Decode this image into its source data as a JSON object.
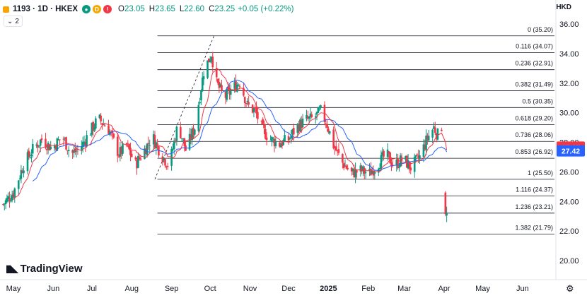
{
  "header": {
    "symbol": "1193 · 1D · HKEX",
    "badges": [
      "D",
      "!"
    ],
    "open_label": "O",
    "open": "23.05",
    "high_label": "H",
    "high": "23.65",
    "low_label": "L",
    "low": "22.60",
    "close_label": "C",
    "close": "23.25",
    "change": "+0.05 (+0.22%)"
  },
  "indicator_toggle": "2",
  "currency": "HKD",
  "brand": "TradingView",
  "colors": {
    "up": "#089981",
    "down": "#f23645",
    "ma_fast": "#f23645",
    "ma_slow": "#2962ff",
    "fib": "#131722"
  },
  "chart_data": {
    "type": "candlestick",
    "ylim": [
      20,
      36
    ],
    "y_ticks": [
      "36.00",
      "34.00",
      "32.00",
      "30.00",
      "28.00",
      "26.00",
      "24.00",
      "22.00",
      "20.00"
    ],
    "x_ticks": [
      {
        "label": "May",
        "day": 0
      },
      {
        "label": "Jun",
        "day": 31
      },
      {
        "label": "Jul",
        "day": 61
      },
      {
        "label": "Aug",
        "day": 92
      },
      {
        "label": "Sep",
        "day": 123
      },
      {
        "label": "Oct",
        "day": 153
      },
      {
        "label": "Nov",
        "day": 184
      },
      {
        "label": "Dec",
        "day": 214
      },
      {
        "label": "2025",
        "day": 245,
        "bold": true
      },
      {
        "label": "Feb",
        "day": 276
      },
      {
        "label": "Mar",
        "day": 304
      },
      {
        "label": "Apr",
        "day": 335
      },
      {
        "label": "May",
        "day": 365
      },
      {
        "label": "Jun",
        "day": 396
      }
    ],
    "fibonacci": {
      "start_day": 112,
      "end_day": 430,
      "levels": [
        {
          "ratio": "0",
          "price": 35.2
        },
        {
          "ratio": "0.116",
          "price": 34.07
        },
        {
          "ratio": "0.236",
          "price": 32.91
        },
        {
          "ratio": "0.382",
          "price": 31.49
        },
        {
          "ratio": "0.5",
          "price": 30.35
        },
        {
          "ratio": "0.618",
          "price": 29.2
        },
        {
          "ratio": "0.736",
          "price": 28.06
        },
        {
          "ratio": "0.853",
          "price": 26.92
        },
        {
          "ratio": "1",
          "price": 25.5
        },
        {
          "ratio": "1.116",
          "price": 24.37
        },
        {
          "ratio": "1.236",
          "price": 23.21
        },
        {
          "ratio": "1.382",
          "price": 21.79
        }
      ]
    },
    "trend_line": {
      "from": {
        "day": 110,
        "price": 25.5
      },
      "to": {
        "day": 156,
        "price": 35.2
      }
    },
    "price_tags": [
      {
        "value": "27.67",
        "color": "#f23645"
      },
      {
        "value": "27.42",
        "color": "#2962ff"
      }
    ],
    "anchors": [
      {
        "day": -8,
        "price": 23.8
      },
      {
        "day": 0,
        "price": 24.6
      },
      {
        "day": 8,
        "price": 26.5
      },
      {
        "day": 15,
        "price": 27.5
      },
      {
        "day": 22,
        "price": 28.2
      },
      {
        "day": 30,
        "price": 27.6
      },
      {
        "day": 38,
        "price": 28.4
      },
      {
        "day": 45,
        "price": 27.2
      },
      {
        "day": 52,
        "price": 27.6
      },
      {
        "day": 58,
        "price": 28.5
      },
      {
        "day": 66,
        "price": 29.6
      },
      {
        "day": 74,
        "price": 28.9
      },
      {
        "day": 82,
        "price": 27.2
      },
      {
        "day": 88,
        "price": 27.8
      },
      {
        "day": 95,
        "price": 26.5
      },
      {
        "day": 102,
        "price": 27.5
      },
      {
        "day": 108,
        "price": 28.4
      },
      {
        "day": 115,
        "price": 27.2
      },
      {
        "day": 121,
        "price": 26.4
      },
      {
        "day": 128,
        "price": 29.2
      },
      {
        "day": 134,
        "price": 27.5
      },
      {
        "day": 141,
        "price": 29.0
      },
      {
        "day": 148,
        "price": 32.8
      },
      {
        "day": 154,
        "price": 34.0
      },
      {
        "day": 158,
        "price": 32.0
      },
      {
        "day": 164,
        "price": 31.0
      },
      {
        "day": 170,
        "price": 31.6
      },
      {
        "day": 176,
        "price": 32.1
      },
      {
        "day": 182,
        "price": 30.5
      },
      {
        "day": 188,
        "price": 30.1
      },
      {
        "day": 194,
        "price": 28.8
      },
      {
        "day": 200,
        "price": 28.2
      },
      {
        "day": 207,
        "price": 27.9
      },
      {
        "day": 214,
        "price": 28.2
      },
      {
        "day": 220,
        "price": 29.0
      },
      {
        "day": 227,
        "price": 29.5
      },
      {
        "day": 233,
        "price": 29.6
      },
      {
        "day": 239,
        "price": 30.1
      },
      {
        "day": 244,
        "price": 29.2
      },
      {
        "day": 249,
        "price": 27.8
      },
      {
        "day": 256,
        "price": 26.6
      },
      {
        "day": 263,
        "price": 25.9
      },
      {
        "day": 270,
        "price": 26.1
      },
      {
        "day": 277,
        "price": 25.9
      },
      {
        "day": 284,
        "price": 26.6
      },
      {
        "day": 290,
        "price": 27.2
      },
      {
        "day": 296,
        "price": 26.4
      },
      {
        "day": 303,
        "price": 26.9
      },
      {
        "day": 309,
        "price": 26.3
      },
      {
        "day": 316,
        "price": 27.0
      },
      {
        "day": 322,
        "price": 28.3
      },
      {
        "day": 327,
        "price": 29.0
      },
      {
        "day": 330,
        "price": 28.5
      },
      {
        "day": 333,
        "price": 29.1
      },
      {
        "day": 335,
        "price": 27.7
      },
      {
        "day": 336,
        "price": 24.0
      },
      {
        "day": 338,
        "price": 23.25
      }
    ]
  }
}
